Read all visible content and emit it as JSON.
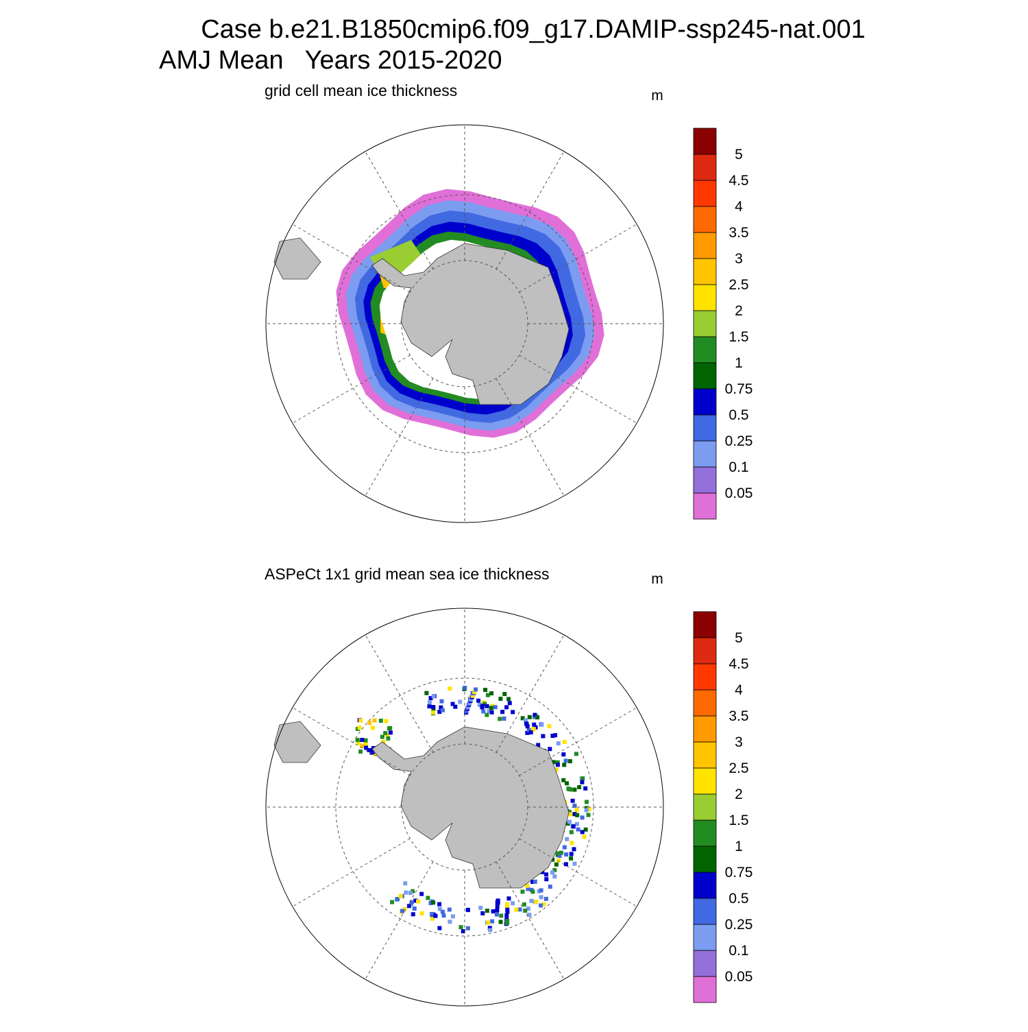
{
  "header": {
    "line1": "Case b.e21.B1850cmip6.f09_g17.DAMIP-ssp245-nat.001",
    "line2": "AMJ Mean   Years 2015-2020"
  },
  "panels": [
    {
      "title": "grid cell mean ice thickness",
      "unit": "m",
      "colorbar": {
        "labels": [
          0.05,
          0.1,
          0.25,
          0.5,
          0.75,
          1,
          1.5,
          2,
          2.5,
          3,
          3.5,
          4,
          4.5,
          5
        ],
        "colors": [
          "#e070d8",
          "#9370db",
          "#7b9cf0",
          "#4169e1",
          "#0000cd",
          "#006400",
          "#228b22",
          "#9acd32",
          "#ffe400",
          "#ffc400",
          "#ff9a00",
          "#ff6a00",
          "#ff3800",
          "#dd2a10",
          "#8b0000"
        ]
      }
    },
    {
      "title": "ASPeCt 1x1 grid mean sea ice thickness",
      "unit": "m",
      "colorbar": {
        "labels": [
          0.05,
          0.1,
          0.25,
          0.5,
          0.75,
          1,
          1.5,
          2,
          2.5,
          3,
          3.5,
          4,
          4.5,
          5
        ],
        "colors": [
          "#e070d8",
          "#9370db",
          "#7b9cf0",
          "#4169e1",
          "#0000cd",
          "#006400",
          "#228b22",
          "#9acd32",
          "#ffe400",
          "#ffc400",
          "#ff9a00",
          "#ff6a00",
          "#ff3800",
          "#dd2a10",
          "#8b0000"
        ]
      }
    }
  ]
}
